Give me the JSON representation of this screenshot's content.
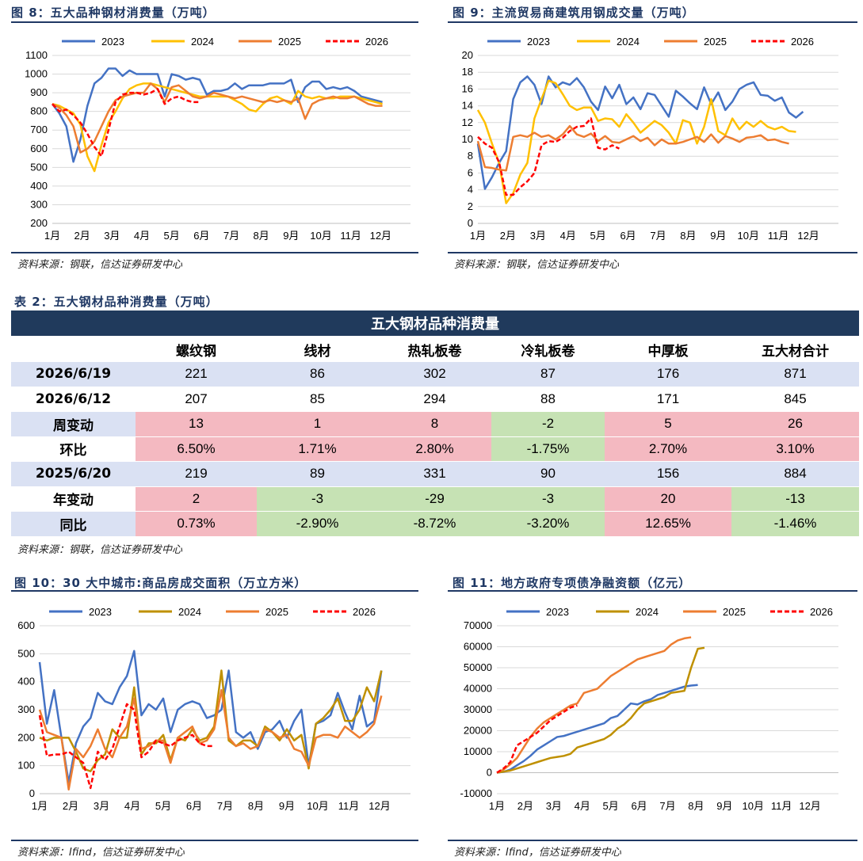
{
  "figures": [
    {
      "title": "图 8：五大品种钢材消费量（万吨）",
      "source": "资料来源：钢联，信达证券研发中心"
    },
    {
      "title": "图 9：主流贸易商建筑用钢成交量（万吨）",
      "source": "资料来源：钢联，信达证券研发中心"
    },
    {
      "title": "图 10：30 大中城市:商品房成交面积（万立方米）",
      "source": "资料来源：Ifind，信达证券研发中心"
    },
    {
      "title": "图 11：地方政府专项债净融资额（亿元）",
      "source": "资料来源：Ifind，信达证券研发中心"
    }
  ],
  "table": {
    "caption": "表 2：五大钢材品种消费量（万吨）",
    "banner": "五大钢材品种消费量",
    "headers": [
      "",
      "螺纹钢",
      "线材",
      "热轧板卷",
      "冷轧板卷",
      "中厚板",
      "五大材合计"
    ],
    "rows": [
      {
        "label": "2026/6/19",
        "values": [
          "221",
          "86",
          "302",
          "87",
          "176",
          "871"
        ],
        "colors": [
          "bl",
          "bl",
          "bl",
          "bl",
          "bl",
          "bl"
        ],
        "labcolor": "bl"
      },
      {
        "label": "2026/6/12",
        "values": [
          "207",
          "85",
          "294",
          "88",
          "171",
          "845"
        ],
        "colors": [
          "wh",
          "wh",
          "wh",
          "wh",
          "wh",
          "wh"
        ],
        "labcolor": "wh"
      },
      {
        "label": "周变动",
        "values": [
          "13",
          "1",
          "8",
          "-2",
          "5",
          "26"
        ],
        "colors": [
          "rd",
          "rd",
          "rd",
          "gr",
          "rd",
          "rd"
        ],
        "labcolor": "bl"
      },
      {
        "label": "环比",
        "values": [
          "6.50%",
          "1.71%",
          "2.80%",
          "-1.75%",
          "2.70%",
          "3.10%"
        ],
        "colors": [
          "rd",
          "rd",
          "rd",
          "gr",
          "rd",
          "rd"
        ],
        "labcolor": "wh"
      },
      {
        "label": "2025/6/20",
        "values": [
          "219",
          "89",
          "331",
          "90",
          "156",
          "884"
        ],
        "colors": [
          "bl",
          "bl",
          "bl",
          "bl",
          "bl",
          "bl"
        ],
        "labcolor": "bl"
      },
      {
        "label": "年变动",
        "values": [
          "2",
          "-3",
          "-29",
          "-3",
          "20",
          "-13"
        ],
        "colors": [
          "rd",
          "gr",
          "gr",
          "gr",
          "rd",
          "gr"
        ],
        "labcolor": "wh"
      },
      {
        "label": "同比",
        "values": [
          "0.73%",
          "-2.90%",
          "-8.72%",
          "-3.20%",
          "12.65%",
          "-1.46%"
        ],
        "colors": [
          "rd",
          "gr",
          "gr",
          "gr",
          "rd",
          "gr"
        ],
        "labcolor": "bl"
      }
    ],
    "source": "资料来源：钢联，信达证券研发中心"
  },
  "series_colors": {
    "2023": "#4472c4",
    "2024a": "#ffc000",
    "2024b": "#bf9000",
    "2025": "#ed7d31",
    "2026": "#ff0000"
  },
  "chart_data": [
    {
      "type": "line",
      "ylim": [
        200,
        1100
      ],
      "yticks": [
        200,
        300,
        400,
        500,
        600,
        700,
        800,
        900,
        1000,
        1100
      ],
      "xticks": [
        "1月",
        "2月",
        "3月",
        "4月",
        "5月",
        "6月",
        "7月",
        "8月",
        "9月",
        "10月",
        "11月",
        "12月"
      ],
      "series": [
        {
          "name": "2023",
          "values": [
            840,
            790,
            720,
            530,
            650,
            830,
            950,
            980,
            1030,
            1030,
            990,
            1020,
            1000,
            1000,
            1000,
            1000,
            880,
            1000,
            990,
            970,
            980,
            970,
            890,
            910,
            910,
            920,
            950,
            920,
            940,
            940,
            940,
            950,
            950,
            950,
            970,
            850,
            930,
            960,
            960,
            920,
            930,
            920,
            930,
            910,
            880,
            870,
            860,
            850
          ]
        },
        {
          "name": "2024",
          "values": [
            840,
            830,
            810,
            790,
            730,
            560,
            480,
            620,
            740,
            800,
            870,
            920,
            940,
            950,
            950,
            940,
            930,
            920,
            910,
            900,
            890,
            880,
            880,
            880,
            880,
            880,
            860,
            840,
            810,
            800,
            840,
            870,
            880,
            860,
            840,
            910,
            880,
            870,
            880,
            870,
            870,
            880,
            880,
            880,
            870,
            860,
            850,
            840
          ]
        },
        {
          "name": "2025",
          "values": [
            840,
            820,
            780,
            720,
            580,
            600,
            640,
            720,
            800,
            860,
            880,
            890,
            900,
            900,
            950,
            920,
            850,
            930,
            940,
            910,
            880,
            870,
            880,
            900,
            890,
            880,
            870,
            880,
            870,
            860,
            850,
            860,
            850,
            860,
            850,
            870,
            760,
            840,
            860,
            870,
            880,
            870,
            870,
            880,
            860,
            840,
            830,
            830
          ]
        },
        {
          "name": "2026",
          "values": [
            840,
            800,
            810,
            780,
            740,
            680,
            610,
            560,
            700,
            850,
            890,
            900,
            900,
            890,
            900,
            920,
            840,
            870,
            880,
            860,
            850,
            850
          ]
        }
      ]
    },
    {
      "type": "line",
      "ylim": [
        0,
        20
      ],
      "yticks": [
        0,
        2,
        4,
        6,
        8,
        10,
        12,
        14,
        16,
        18,
        20
      ],
      "xticks": [
        "1月",
        "2月",
        "3月",
        "4月",
        "5月",
        "6月",
        "7月",
        "8月",
        "9月",
        "10月",
        "11月",
        "12月"
      ],
      "series": [
        {
          "name": "2023",
          "values": [
            9.5,
            4.1,
            5.5,
            7.2,
            8.6,
            14.8,
            16.8,
            17.5,
            16.5,
            14.2,
            17.5,
            16.2,
            16.8,
            16.5,
            17.3,
            16.2,
            14.5,
            13.5,
            16.3,
            14.9,
            16.5,
            14.2,
            15.0,
            13.6,
            15.5,
            15.3,
            14.0,
            12.7,
            15.8,
            15.1,
            14.3,
            13.6,
            16.2,
            14.2,
            15.6,
            13.5,
            14.5,
            16.0,
            16.5,
            16.8,
            15.3,
            15.2,
            14.6,
            15.0,
            13.2,
            12.6,
            13.3
          ]
        },
        {
          "name": "2024",
          "values": [
            13.5,
            12.0,
            9.5,
            7.2,
            2.4,
            3.6,
            5.8,
            7.2,
            12.5,
            14.8,
            17.0,
            16.7,
            15.4,
            14.0,
            13.5,
            13.8,
            13.8,
            12.2,
            12.5,
            12.4,
            11.5,
            13.0,
            12.0,
            10.8,
            11.5,
            12.2,
            11.7,
            10.8,
            9.5,
            12.3,
            12.0,
            9.5,
            11.5,
            14.8,
            11.0,
            10.5,
            12.5,
            11.2,
            12.1,
            11.5,
            12.2,
            11.5,
            11.2,
            11.5,
            11.0,
            10.9
          ]
        },
        {
          "name": "2025",
          "values": [
            9.8,
            6.7,
            6.6,
            6.4,
            6.3,
            10.3,
            10.5,
            10.3,
            10.8,
            10.3,
            10.5,
            10.0,
            10.6,
            11.6,
            10.6,
            10.3,
            10.7,
            9.8,
            10.4,
            9.7,
            9.6,
            10.0,
            10.4,
            9.8,
            10.2,
            9.3,
            10.0,
            9.5,
            9.5,
            9.7,
            10.0,
            10.3,
            9.7,
            10.6,
            9.6,
            10.4,
            10.1,
            9.7,
            10.2,
            10.3,
            10.5,
            9.9,
            10.0,
            9.7,
            9.5
          ]
        },
        {
          "name": "2026",
          "values": [
            10.3,
            9.5,
            9.0,
            7.3,
            3.4,
            3.4,
            4.3,
            5.0,
            6.0,
            9.3,
            9.8,
            9.7,
            10.2,
            11.0,
            11.5,
            11.6,
            12.5,
            9.0,
            8.8,
            9.3,
            8.9
          ]
        }
      ]
    },
    {
      "type": "line",
      "ylim": [
        0,
        600
      ],
      "yticks": [
        0,
        100,
        200,
        300,
        400,
        500,
        600
      ],
      "xticks": [
        "1月",
        "2月",
        "3月",
        "4月",
        "5月",
        "6月",
        "7月",
        "8月",
        "9月",
        "10月",
        "11月",
        "12月"
      ],
      "series": [
        {
          "name": "2023",
          "values": [
            470,
            250,
            370,
            200,
            40,
            180,
            240,
            270,
            360,
            330,
            320,
            380,
            420,
            510,
            280,
            320,
            300,
            340,
            220,
            300,
            320,
            330,
            320,
            270,
            280,
            300,
            440,
            220,
            200,
            220,
            160,
            220,
            230,
            260,
            200,
            260,
            300,
            100,
            250,
            260,
            280,
            360,
            290,
            230,
            350,
            240,
            260,
            440
          ]
        },
        {
          "name": "2024",
          "values": [
            200,
            190,
            200,
            200,
            200,
            150,
            90,
            80,
            120,
            140,
            230,
            200,
            200,
            380,
            140,
            180,
            180,
            210,
            120,
            200,
            190,
            230,
            190,
            200,
            240,
            440,
            190,
            170,
            190,
            190,
            170,
            240,
            220,
            190,
            230,
            190,
            210,
            90,
            250,
            270,
            300,
            340,
            260,
            260,
            300,
            380,
            330,
            440
          ]
        },
        {
          "name": "2025",
          "values": [
            300,
            220,
            210,
            200,
            15,
            160,
            130,
            170,
            230,
            160,
            130,
            200,
            240,
            340,
            160,
            170,
            190,
            190,
            110,
            200,
            220,
            240,
            180,
            190,
            230,
            370,
            200,
            170,
            180,
            160,
            170,
            230,
            220,
            200,
            210,
            160,
            150,
            100,
            200,
            210,
            210,
            200,
            240,
            220,
            200,
            220,
            250,
            350
          ]
        },
        {
          "name": "2026",
          "values": [
            280,
            135,
            140,
            140,
            150,
            130,
            110,
            20,
            150,
            120,
            160,
            240,
            320,
            300,
            130,
            150,
            190,
            180,
            170,
            190,
            200,
            210,
            180,
            170,
            170
          ]
        }
      ]
    },
    {
      "type": "line",
      "ylim": [
        -10000,
        70000
      ],
      "yticks": [
        -10000,
        0,
        10000,
        20000,
        30000,
        40000,
        50000,
        60000,
        70000
      ],
      "xticks": [
        "1月",
        "2月",
        "3月",
        "4月",
        "5月",
        "6月",
        "7月",
        "8月",
        "9月",
        "10月",
        "11月",
        "12月"
      ],
      "series": [
        {
          "name": "2023",
          "values": [
            0,
            400,
            1500,
            3500,
            5500,
            8000,
            11000,
            13000,
            15000,
            17000,
            17500,
            18500,
            19500,
            20500,
            21500,
            22500,
            23500,
            26000,
            27000,
            30000,
            33000,
            32500,
            34000,
            35000,
            37000,
            38000,
            39000,
            40000,
            41000,
            41500,
            41800
          ]
        },
        {
          "name": "2024",
          "values": [
            0,
            500,
            1000,
            2000,
            3000,
            4000,
            5000,
            6000,
            7000,
            7500,
            8000,
            9000,
            12000,
            13000,
            14000,
            15000,
            16000,
            18000,
            21000,
            23000,
            26000,
            30000,
            33000,
            34000,
            35000,
            36000,
            38000,
            38500,
            39000,
            50000,
            59000,
            59500
          ]
        },
        {
          "name": "2025",
          "values": [
            0,
            1500,
            4000,
            7000,
            12000,
            17000,
            21000,
            24000,
            26000,
            28000,
            30000,
            32000,
            33000,
            38000,
            39000,
            40000,
            43000,
            46000,
            48000,
            50000,
            52000,
            54000,
            55000,
            56000,
            57000,
            58000,
            61000,
            63000,
            64000,
            64500
          ]
        },
        {
          "name": "2026",
          "values": [
            0,
            2000,
            5000,
            13000,
            15000,
            17000,
            19000,
            22000,
            25000,
            27000,
            29000,
            31000,
            32000
          ]
        }
      ]
    }
  ]
}
